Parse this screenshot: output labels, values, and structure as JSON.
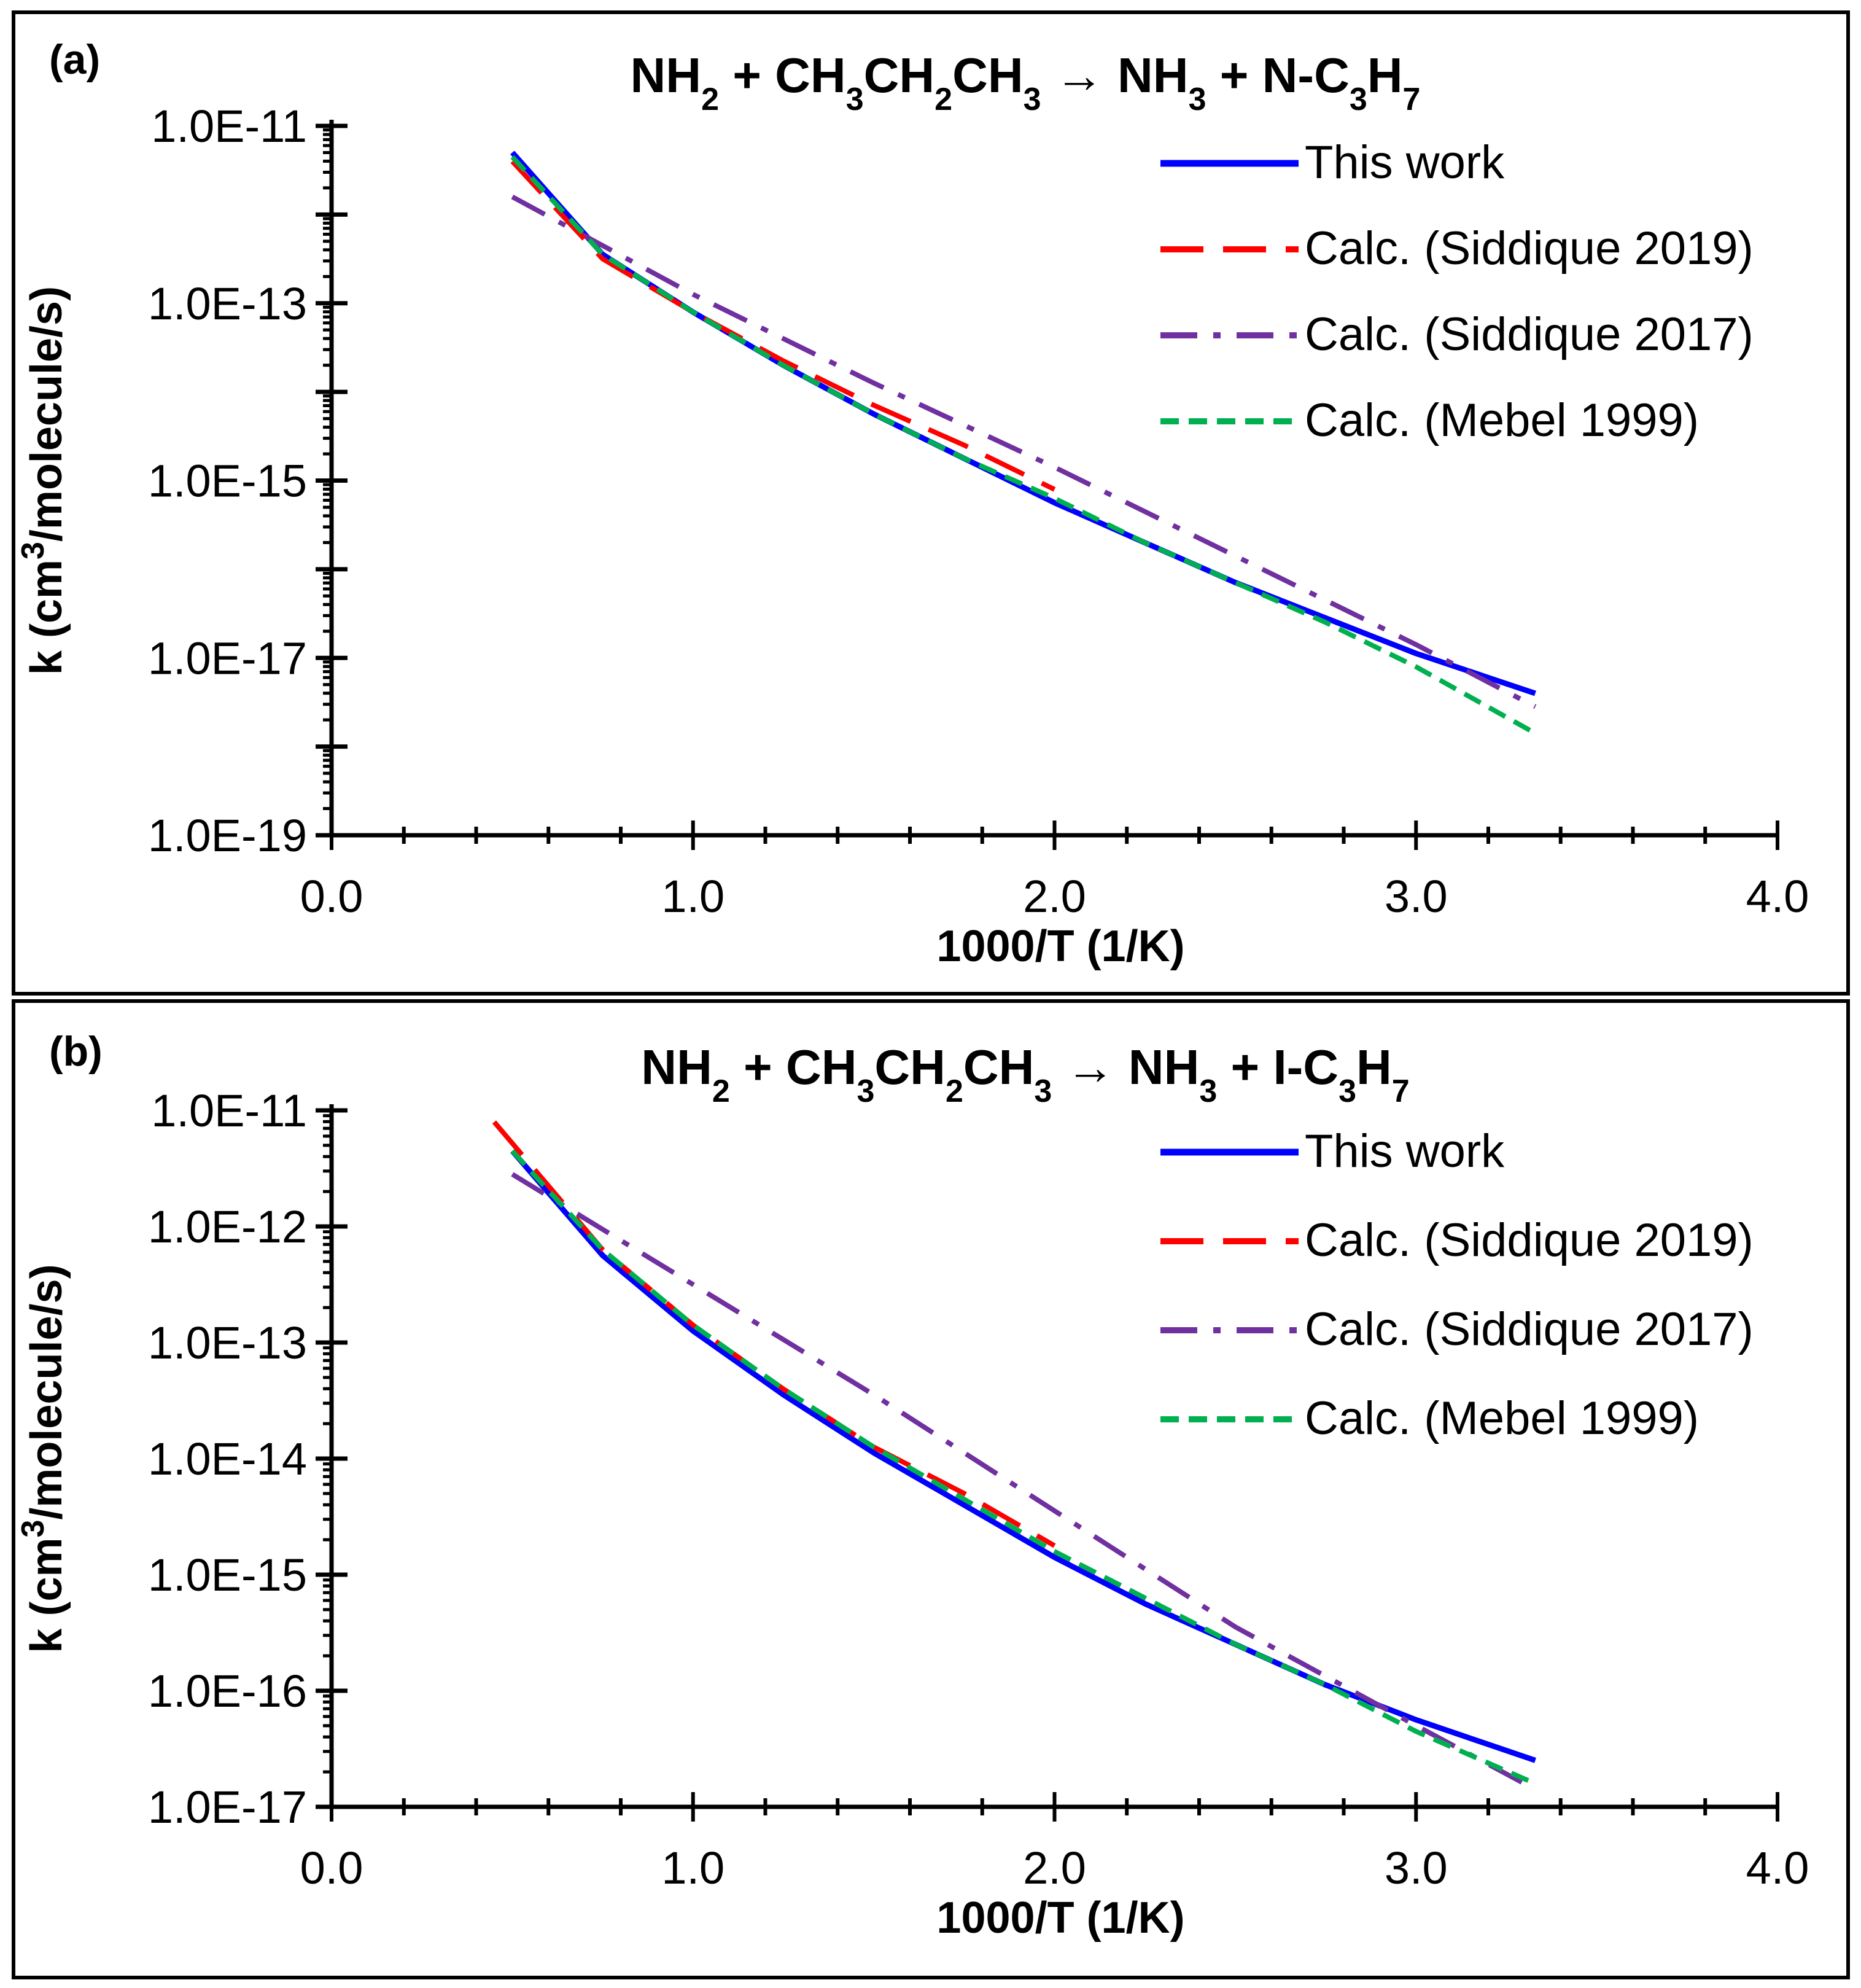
{
  "chart_data": [
    {
      "type": "line",
      "panel_label": "(a)",
      "title": {
        "segments": [
          {
            "t": "NH",
            "s": ""
          },
          {
            "t": "2",
            "s": "sub"
          },
          {
            "t": " + CH",
            "s": ""
          },
          {
            "t": "3",
            "s": "sub"
          },
          {
            "t": "CH",
            "s": ""
          },
          {
            "t": "2",
            "s": "sub"
          },
          {
            "t": "CH",
            "s": ""
          },
          {
            "t": "3",
            "s": "sub"
          },
          {
            "t": " → NH",
            "s": ""
          },
          {
            "t": "3",
            "s": "sub"
          },
          {
            "t": " + N-C",
            "s": ""
          },
          {
            "t": "3",
            "s": "sub"
          },
          {
            "t": "H",
            "s": ""
          },
          {
            "t": "7",
            "s": "sub"
          }
        ]
      },
      "xlabel": "1000/T (1/K)",
      "ylabel": {
        "segments": [
          {
            "t": "k (cm",
            "s": ""
          },
          {
            "t": "3",
            "s": "sup"
          },
          {
            "t": "/molecule/s)",
            "s": ""
          }
        ]
      },
      "xlim": [
        0,
        4
      ],
      "x_ticks": [
        0,
        1,
        2,
        3,
        4
      ],
      "x_tick_labels": [
        "0.0",
        "1.0",
        "2.0",
        "3.0",
        "4.0"
      ],
      "ylim_log10": [
        -19,
        -11
      ],
      "y_ticks_log10": [
        -11,
        -13,
        -15,
        -17,
        -19
      ],
      "y_tick_labels": [
        "1.0E-11",
        "1.0E-13",
        "1.0E-15",
        "1.0E-17",
        "1.0E-19"
      ],
      "legend": [
        "This work",
        "Calc. (Siddique 2019)",
        "Calc. (Siddique 2017)",
        "Calc. (Mebel 1999)"
      ],
      "legend_position": "top-right",
      "series": [
        {
          "name": "This work",
          "color": "#0000ff",
          "style": "solid",
          "x": [
            0.5,
            0.75,
            1.0,
            1.25,
            1.5,
            1.75,
            2.0,
            2.25,
            2.5,
            2.75,
            3.0,
            3.33
          ],
          "log10_y": [
            -11.3,
            -12.45,
            -13.1,
            -13.7,
            -14.25,
            -14.75,
            -15.25,
            -15.7,
            -16.15,
            -16.55,
            -16.95,
            -17.4
          ]
        },
        {
          "name": "Calc. (Siddique 2019)",
          "color": "#ff0000",
          "style": "dash",
          "x": [
            0.5,
            0.75,
            1.0,
            1.25,
            1.5,
            1.75,
            2.0
          ],
          "log10_y": [
            -11.4,
            -12.5,
            -13.1,
            -13.65,
            -14.15,
            -14.6,
            -15.1
          ]
        },
        {
          "name": "Calc. (Siddique 2017)",
          "color": "#7030a0",
          "style": "dashdot",
          "x": [
            0.5,
            1.0,
            1.5,
            2.0,
            2.5,
            3.0,
            3.33
          ],
          "log10_y": [
            -11.8,
            -12.9,
            -13.9,
            -14.85,
            -15.85,
            -16.85,
            -17.55
          ]
        },
        {
          "name": "Calc. (Mebel 1999)",
          "color": "#00b050",
          "style": "shortdash",
          "x": [
            0.5,
            0.75,
            1.0,
            1.25,
            1.5,
            1.75,
            2.0,
            2.25,
            2.5,
            2.75,
            3.0,
            3.33
          ],
          "log10_y": [
            -11.35,
            -12.45,
            -13.1,
            -13.7,
            -14.25,
            -14.75,
            -15.2,
            -15.7,
            -16.15,
            -16.6,
            -17.1,
            -17.85
          ]
        }
      ]
    },
    {
      "type": "line",
      "panel_label": "(b)",
      "title": {
        "segments": [
          {
            "t": "NH",
            "s": ""
          },
          {
            "t": "2",
            "s": "sub"
          },
          {
            "t": " + CH",
            "s": ""
          },
          {
            "t": "3",
            "s": "sub"
          },
          {
            "t": "CH",
            "s": ""
          },
          {
            "t": "2",
            "s": "sub"
          },
          {
            "t": "CH",
            "s": ""
          },
          {
            "t": "3",
            "s": "sub"
          },
          {
            "t": " → NH",
            "s": ""
          },
          {
            "t": "3",
            "s": "sub"
          },
          {
            "t": " + I-C",
            "s": ""
          },
          {
            "t": "3",
            "s": "sub"
          },
          {
            "t": "H",
            "s": ""
          },
          {
            "t": "7",
            "s": "sub"
          }
        ]
      },
      "xlabel": "1000/T (1/K)",
      "ylabel": {
        "segments": [
          {
            "t": "k (cm",
            "s": ""
          },
          {
            "t": "3",
            "s": "sup"
          },
          {
            "t": "/molecule/s)",
            "s": ""
          }
        ]
      },
      "xlim": [
        0,
        4
      ],
      "x_ticks": [
        0,
        1,
        2,
        3,
        4
      ],
      "x_tick_labels": [
        "0.0",
        "1.0",
        "2.0",
        "3.0",
        "4.0"
      ],
      "ylim_log10": [
        -17,
        -11
      ],
      "y_ticks_log10": [
        -11,
        -12,
        -13,
        -14,
        -15,
        -16,
        -17
      ],
      "y_tick_labels": [
        "1.0E-11",
        "1.0E-12",
        "1.0E-13",
        "1.0E-14",
        "1.0E-15",
        "1.0E-16",
        "1.0E-17"
      ],
      "legend": [
        "This work",
        "Calc. (Siddique 2019)",
        "Calc. (Siddique 2017)",
        "Calc. (Mebel 1999)"
      ],
      "legend_position": "top-right",
      "series": [
        {
          "name": "This work",
          "color": "#0000ff",
          "style": "solid",
          "x": [
            0.5,
            0.75,
            1.0,
            1.25,
            1.5,
            1.75,
            2.0,
            2.25,
            2.5,
            2.75,
            3.0,
            3.33
          ],
          "log10_y": [
            -11.35,
            -12.25,
            -12.9,
            -13.45,
            -13.95,
            -14.4,
            -14.85,
            -15.25,
            -15.6,
            -15.95,
            -16.25,
            -16.6
          ]
        },
        {
          "name": "Calc. (Siddique 2019)",
          "color": "#ff0000",
          "style": "dash",
          "x": [
            0.45,
            0.75,
            1.0,
            1.25,
            1.5,
            1.75,
            2.0
          ],
          "log10_y": [
            -11.1,
            -12.2,
            -12.85,
            -13.4,
            -13.9,
            -14.3,
            -14.75
          ]
        },
        {
          "name": "Calc. (Siddique 2017)",
          "color": "#7030a0",
          "style": "dashdot",
          "x": [
            0.5,
            1.0,
            1.5,
            2.0,
            2.5,
            3.0,
            3.33
          ],
          "log10_y": [
            -11.55,
            -12.5,
            -13.45,
            -14.45,
            -15.45,
            -16.3,
            -16.85
          ]
        },
        {
          "name": "Calc. (Mebel 1999)",
          "color": "#00b050",
          "style": "shortdash",
          "x": [
            0.5,
            0.75,
            1.0,
            1.25,
            1.5,
            1.75,
            2.0,
            2.25,
            2.5,
            2.75,
            3.0,
            3.33
          ],
          "log10_y": [
            -11.35,
            -12.2,
            -12.85,
            -13.4,
            -13.9,
            -14.35,
            -14.8,
            -15.2,
            -15.6,
            -15.95,
            -16.35,
            -16.8
          ]
        }
      ]
    }
  ]
}
